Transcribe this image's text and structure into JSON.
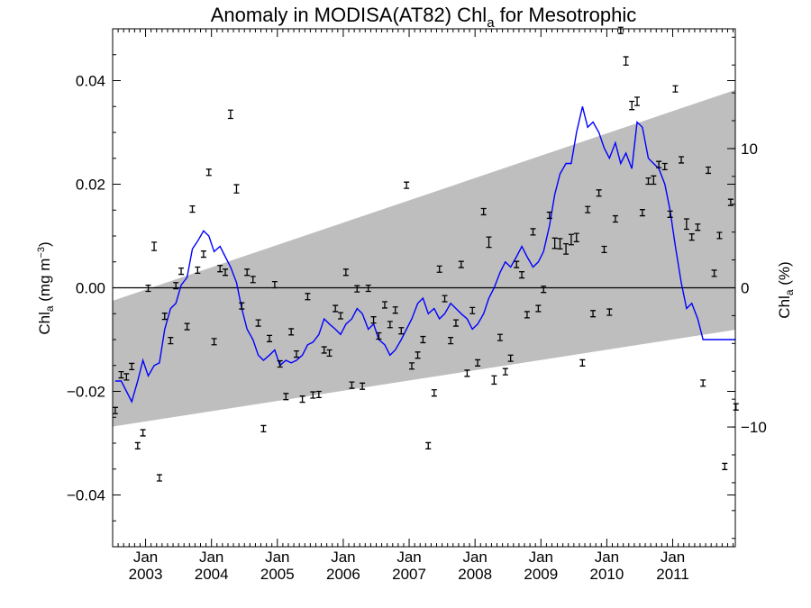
{
  "chart_data": {
    "type": "line",
    "title_main": "Anomaly in MODISA(AT82) Chl",
    "title_sub": "a",
    "title_tail": " for Mesotrophic",
    "ylabel_main": "Chl",
    "ylabel_sub": "a",
    "ylabel_units_pre": " (mg m",
    "ylabel_units_sup": "−3",
    "ylabel_units_post": ")",
    "y2label_main": "Chl",
    "y2label_sub": "a",
    "y2label_tail": " (%)",
    "xlim": [
      2002.5,
      2011.95
    ],
    "ylim": [
      -0.05,
      0.05
    ],
    "y2lim": [
      -18.6,
      18.6
    ],
    "yticks": [
      {
        "value": 0.04,
        "label": "0.04"
      },
      {
        "value": 0.02,
        "label": "0.02"
      },
      {
        "value": 0.0,
        "label": "0.00"
      },
      {
        "value": -0.02,
        "label": "−0.02"
      },
      {
        "value": -0.04,
        "label": "−0.04"
      }
    ],
    "y2ticks": [
      {
        "value": 10,
        "label": "10"
      },
      {
        "value": 0,
        "label": "0"
      },
      {
        "value": -10,
        "label": "−10"
      }
    ],
    "xticks": [
      {
        "value": 2003.0,
        "month": "Jan",
        "year": "2003"
      },
      {
        "value": 2004.0,
        "month": "Jan",
        "year": "2004"
      },
      {
        "value": 2005.0,
        "month": "Jan",
        "year": "2005"
      },
      {
        "value": 2006.0,
        "month": "Jan",
        "year": "2006"
      },
      {
        "value": 2007.0,
        "month": "Jan",
        "year": "2007"
      },
      {
        "value": 2008.0,
        "month": "Jan",
        "year": "2008"
      },
      {
        "value": 2009.0,
        "month": "Jan",
        "year": "2009"
      },
      {
        "value": 2010.0,
        "month": "Jan",
        "year": "2010"
      },
      {
        "value": 2011.0,
        "month": "Jan",
        "year": "2011"
      }
    ],
    "band": {
      "x": [
        2002.5,
        2011.95
      ],
      "upper": [
        -0.0025,
        0.0382
      ],
      "lower": [
        -0.0268,
        -0.0081
      ],
      "color": "#bebebe"
    },
    "zero_line": 0.0,
    "series": [
      {
        "kind": "line",
        "color": "#0000ff",
        "x": [
          2002.54,
          2002.63,
          2002.71,
          2002.79,
          2002.88,
          2002.96,
          2003.04,
          2003.13,
          2003.21,
          2003.29,
          2003.38,
          2003.46,
          2003.54,
          2003.63,
          2003.71,
          2003.79,
          2003.88,
          2003.96,
          2004.04,
          2004.13,
          2004.21,
          2004.29,
          2004.38,
          2004.46,
          2004.54,
          2004.63,
          2004.71,
          2004.79,
          2004.88,
          2004.96,
          2005.04,
          2005.13,
          2005.21,
          2005.29,
          2005.38,
          2005.46,
          2005.54,
          2005.63,
          2005.71,
          2005.79,
          2005.88,
          2005.96,
          2006.04,
          2006.13,
          2006.21,
          2006.29,
          2006.38,
          2006.46,
          2006.54,
          2006.63,
          2006.71,
          2006.79,
          2006.88,
          2006.96,
          2007.04,
          2007.13,
          2007.21,
          2007.29,
          2007.38,
          2007.46,
          2007.54,
          2007.63,
          2007.71,
          2007.79,
          2007.88,
          2007.96,
          2008.04,
          2008.13,
          2008.21,
          2008.29,
          2008.38,
          2008.46,
          2008.54,
          2008.63,
          2008.71,
          2008.79,
          2008.88,
          2008.96,
          2009.04,
          2009.13,
          2009.21,
          2009.29,
          2009.38,
          2009.46,
          2009.54,
          2009.63,
          2009.71,
          2009.79,
          2009.88,
          2009.96,
          2010.04,
          2010.13,
          2010.21,
          2010.29,
          2010.38,
          2010.46,
          2010.54,
          2010.63,
          2010.71,
          2010.79,
          2010.88,
          2010.96,
          2011.04,
          2011.13,
          2011.21,
          2011.29,
          2011.38,
          2011.46,
          2011.54,
          2011.63,
          2011.71,
          2011.79,
          2011.88,
          2011.96
        ],
        "y": [
          -0.018,
          -0.018,
          -0.02,
          -0.022,
          -0.018,
          -0.014,
          -0.017,
          -0.015,
          -0.0145,
          -0.008,
          -0.004,
          -0.003,
          0.0005,
          0.002,
          0.0075,
          0.009,
          0.011,
          0.01,
          0.007,
          0.008,
          0.006,
          0.004,
          0.001,
          -0.004,
          -0.008,
          -0.01,
          -0.013,
          -0.014,
          -0.013,
          -0.012,
          -0.015,
          -0.014,
          -0.0145,
          -0.014,
          -0.013,
          -0.011,
          -0.0105,
          -0.009,
          -0.006,
          -0.007,
          -0.008,
          -0.009,
          -0.007,
          -0.006,
          -0.004,
          -0.005,
          -0.008,
          -0.007,
          -0.01,
          -0.011,
          -0.013,
          -0.012,
          -0.01,
          -0.008,
          -0.006,
          -0.003,
          -0.002,
          -0.005,
          -0.004,
          -0.006,
          -0.005,
          -0.003,
          -0.004,
          -0.005,
          -0.006,
          -0.008,
          -0.007,
          -0.005,
          -0.002,
          0.0,
          0.003,
          0.005,
          0.004,
          0.006,
          0.008,
          0.006,
          0.004,
          0.005,
          0.007,
          0.012,
          0.018,
          0.022,
          0.024,
          0.024,
          0.03,
          0.035,
          0.031,
          0.032,
          0.03,
          0.027,
          0.025,
          0.028,
          0.024,
          0.026,
          0.023,
          0.032,
          0.031,
          0.025,
          0.024,
          0.023,
          0.02,
          0.015,
          0.008,
          0.001,
          -0.004,
          -0.003,
          -0.006,
          -0.01,
          -0.01,
          -0.01,
          -0.01,
          -0.01,
          -0.01,
          -0.01
        ]
      },
      {
        "kind": "errorbar",
        "color": "#000000",
        "x": [
          2002.54,
          2002.63,
          2002.71,
          2002.79,
          2002.88,
          2002.96,
          2003.04,
          2003.13,
          2003.21,
          2003.29,
          2003.38,
          2003.46,
          2003.54,
          2003.63,
          2003.71,
          2003.79,
          2003.88,
          2003.96,
          2004.04,
          2004.13,
          2004.21,
          2004.29,
          2004.38,
          2004.46,
          2004.54,
          2004.63,
          2004.71,
          2004.79,
          2004.88,
          2004.96,
          2005.04,
          2005.13,
          2005.21,
          2005.29,
          2005.38,
          2005.46,
          2005.54,
          2005.63,
          2005.71,
          2005.79,
          2005.88,
          2005.96,
          2006.04,
          2006.13,
          2006.21,
          2006.29,
          2006.38,
          2006.46,
          2006.54,
          2006.63,
          2006.71,
          2006.79,
          2006.88,
          2006.96,
          2007.04,
          2007.13,
          2007.21,
          2007.29,
          2007.38,
          2007.46,
          2007.54,
          2007.63,
          2007.71,
          2007.79,
          2007.88,
          2007.96,
          2008.04,
          2008.13,
          2008.21,
          2008.29,
          2008.38,
          2008.46,
          2008.54,
          2008.63,
          2008.71,
          2008.79,
          2008.88,
          2008.96,
          2009.04,
          2009.13,
          2009.21,
          2009.29,
          2009.38,
          2009.46,
          2009.54,
          2009.63,
          2009.71,
          2009.79,
          2009.88,
          2009.96,
          2010.04,
          2010.13,
          2010.21,
          2010.29,
          2010.38,
          2010.46,
          2010.54,
          2010.63,
          2010.71,
          2010.79,
          2010.88,
          2010.96,
          2011.04,
          2011.13,
          2011.21,
          2011.29,
          2011.38,
          2011.46,
          2011.54,
          2011.63,
          2011.71,
          2011.79,
          2011.88,
          2011.96
        ],
        "y": [
          -0.0237,
          -0.0168,
          -0.0172,
          -0.0152,
          -0.0305,
          -0.028,
          -0.0001,
          0.008,
          -0.0367,
          -0.0055,
          -0.0102,
          0.0004,
          0.0032,
          -0.0075,
          0.0152,
          0.0034,
          0.0065,
          0.0223,
          -0.0104,
          0.0037,
          0.003,
          0.0335,
          0.0191,
          -0.0035,
          0.003,
          0.0016,
          -0.0068,
          -0.0272,
          -0.0098,
          0.0006,
          -0.0147,
          -0.021,
          -0.0085,
          -0.0128,
          -0.0215,
          -0.0017,
          -0.0207,
          -0.0206,
          -0.012,
          -0.0126,
          -0.004,
          -0.0054,
          0.003,
          -0.0188,
          -0.0002,
          -0.019,
          -0.0001,
          -0.0062,
          -0.0093,
          -0.0033,
          -0.0071,
          -0.0043,
          -0.0083,
          0.0198,
          -0.0151,
          -0.013,
          -0.01,
          -0.0305,
          -0.0203,
          0.0036,
          -0.0021,
          -0.0102,
          -0.0068,
          0.0045,
          -0.0165,
          -0.0044,
          -0.0145,
          0.0147,
          0.0088,
          -0.0178,
          -0.0096,
          -0.0162,
          -0.0136,
          0.0045,
          0.0025,
          -0.0052,
          0.0108,
          -0.004,
          -0.0003,
          0.014,
          0.0086,
          0.0085,
          0.0075,
          0.0093,
          0.0097,
          -0.0145,
          0.0151,
          -0.005,
          0.0183,
          0.0074,
          -0.0047,
          0.0133,
          0.0497,
          0.0438,
          0.0352,
          0.036,
          0.0145,
          0.0206,
          0.0208,
          0.0238,
          0.0234,
          0.0142,
          0.0384,
          0.0247,
          0.0123,
          0.0098,
          0.0117,
          -0.0184,
          0.0227,
          0.0028,
          0.0101,
          -0.0345,
          0.0165,
          -0.023
        ],
        "err": [
          0.0006,
          0.0006,
          0.0006,
          0.0006,
          0.0006,
          0.0006,
          0.0006,
          0.0008,
          0.0006,
          0.0006,
          0.0006,
          0.0006,
          0.0006,
          0.0006,
          0.0006,
          0.0006,
          0.0006,
          0.0006,
          0.0006,
          0.0006,
          0.0006,
          0.0008,
          0.0008,
          0.0006,
          0.0006,
          0.0006,
          0.0006,
          0.0006,
          0.0006,
          0.0006,
          0.0006,
          0.0006,
          0.0006,
          0.0006,
          0.0006,
          0.0006,
          0.0006,
          0.0006,
          0.0006,
          0.0006,
          0.0006,
          0.0006,
          0.0006,
          0.0006,
          0.0006,
          0.0006,
          0.0006,
          0.0006,
          0.0006,
          0.0006,
          0.0006,
          0.0006,
          0.0006,
          0.0006,
          0.0006,
          0.0006,
          0.0006,
          0.0006,
          0.0006,
          0.0006,
          0.0006,
          0.0006,
          0.0006,
          0.0006,
          0.0006,
          0.0006,
          0.0006,
          0.0006,
          0.001,
          0.0008,
          0.0006,
          0.0006,
          0.0006,
          0.0006,
          0.0006,
          0.0006,
          0.0006,
          0.0006,
          0.0006,
          0.0006,
          0.001,
          0.001,
          0.001,
          0.001,
          0.0008,
          0.0006,
          0.0006,
          0.0006,
          0.0006,
          0.0006,
          0.0006,
          0.0006,
          0.0006,
          0.0008,
          0.0008,
          0.0008,
          0.0006,
          0.0006,
          0.0008,
          0.0006,
          0.0006,
          0.0006,
          0.0006,
          0.0006,
          0.001,
          0.0006,
          0.0006,
          0.0006,
          0.0006,
          0.0006,
          0.0006,
          0.0006,
          0.0006,
          0.0006
        ]
      }
    ]
  }
}
